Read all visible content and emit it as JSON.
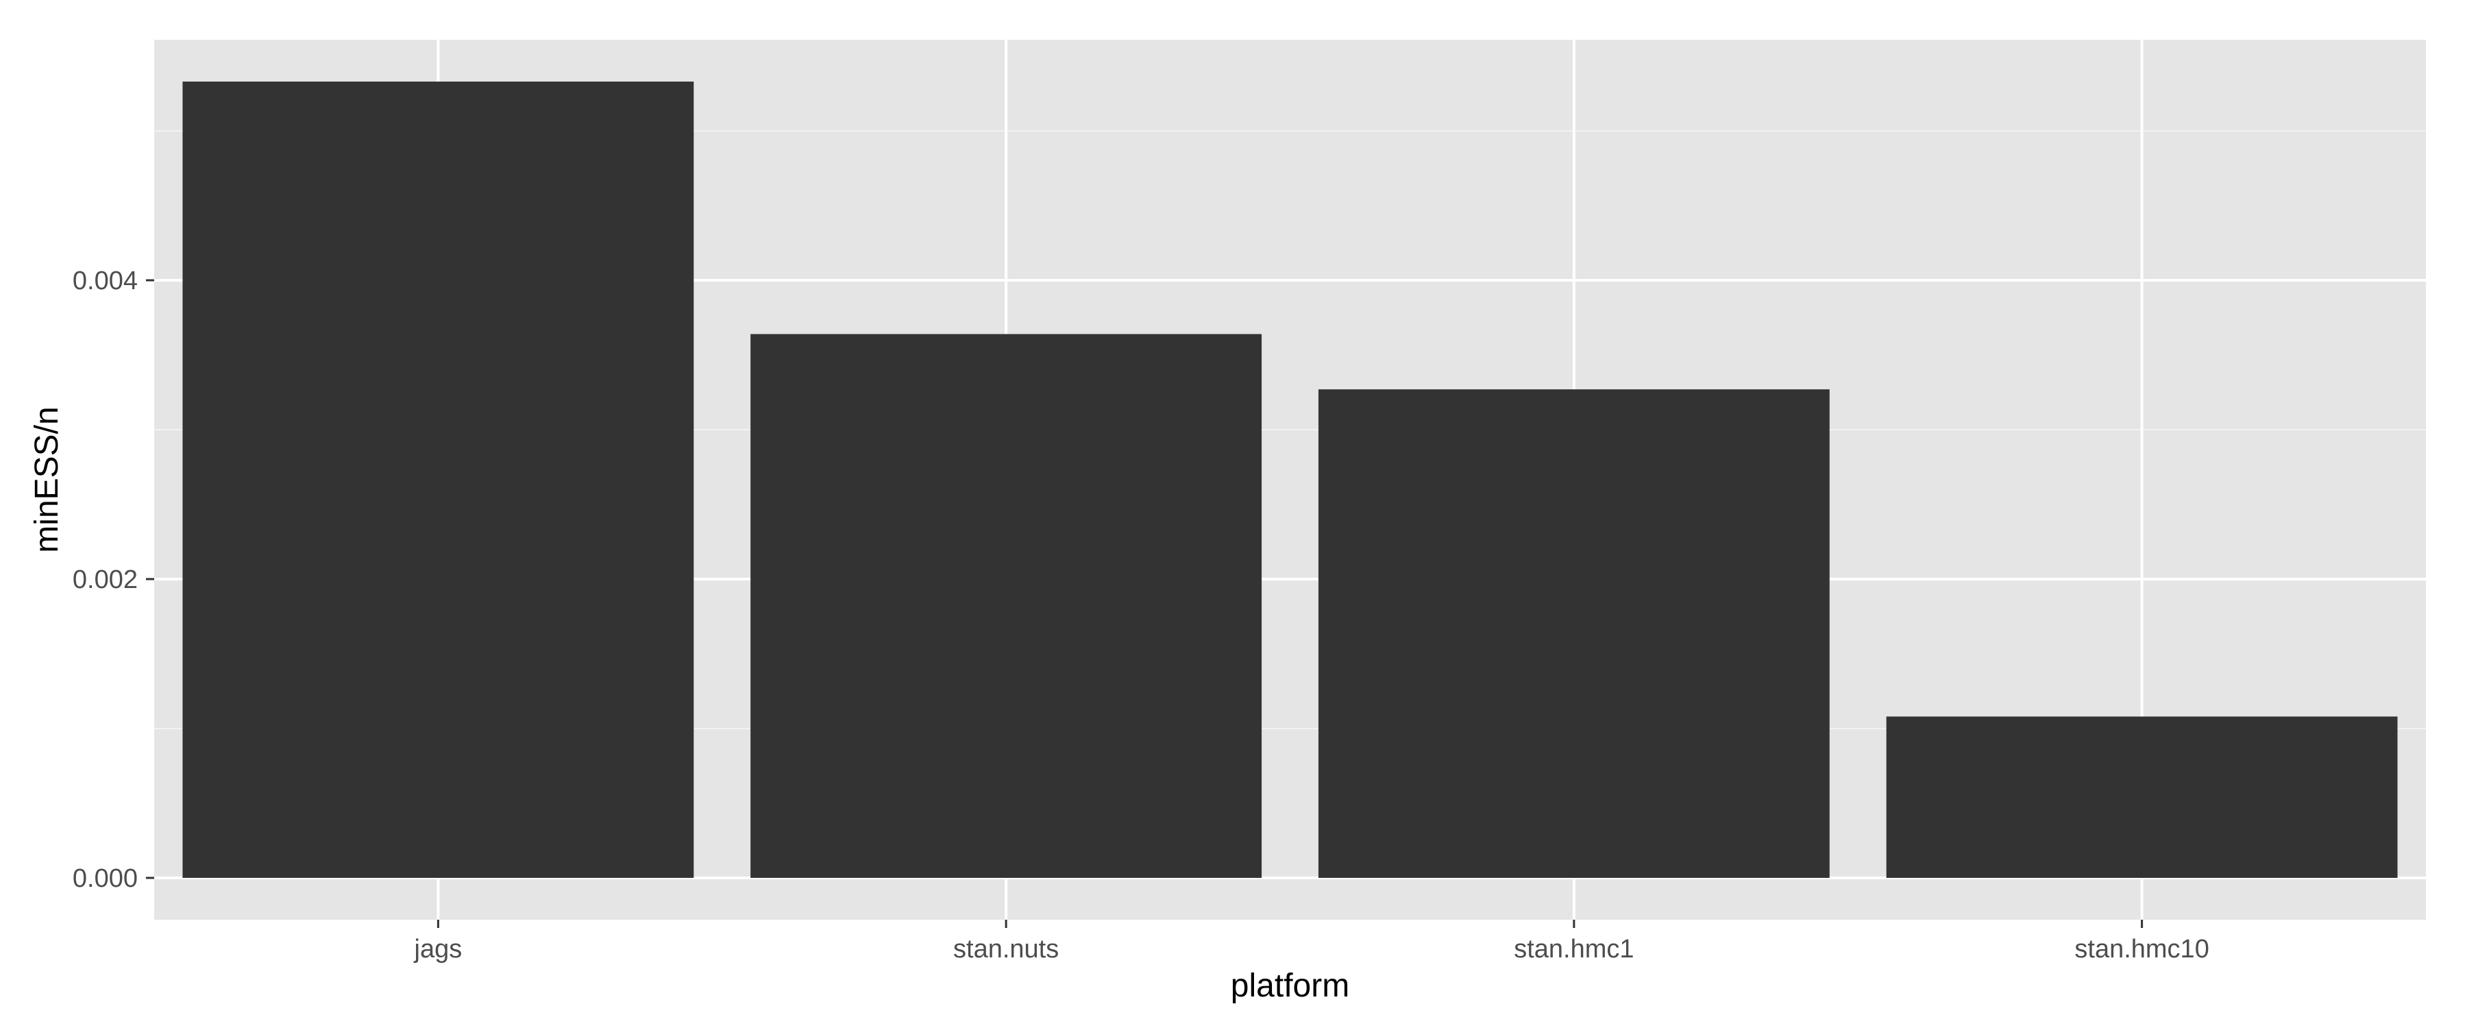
{
  "chart_data": {
    "type": "bar",
    "categories": [
      "jags",
      "stan.nuts",
      "stan.hmc1",
      "stan.hmc10"
    ],
    "values": [
      0.00533,
      0.00364,
      0.00327,
      0.00108
    ],
    "title": "",
    "xlabel": "platform",
    "ylabel": "minESS/n",
    "ylim": [
      -0.00028,
      0.00561
    ],
    "y_ticks": [
      0.0,
      0.002,
      0.004
    ],
    "y_tick_labels": [
      "0.000",
      "0.002",
      "0.004"
    ],
    "grid": true,
    "legend": "none",
    "colors": {
      "bar": "#333333",
      "panel": "#e5e5e5",
      "grid_major": "#ffffff",
      "grid_minor": "#f2f2f2",
      "tick_text": "#4d4d4d",
      "tick_mark": "#333333"
    }
  }
}
